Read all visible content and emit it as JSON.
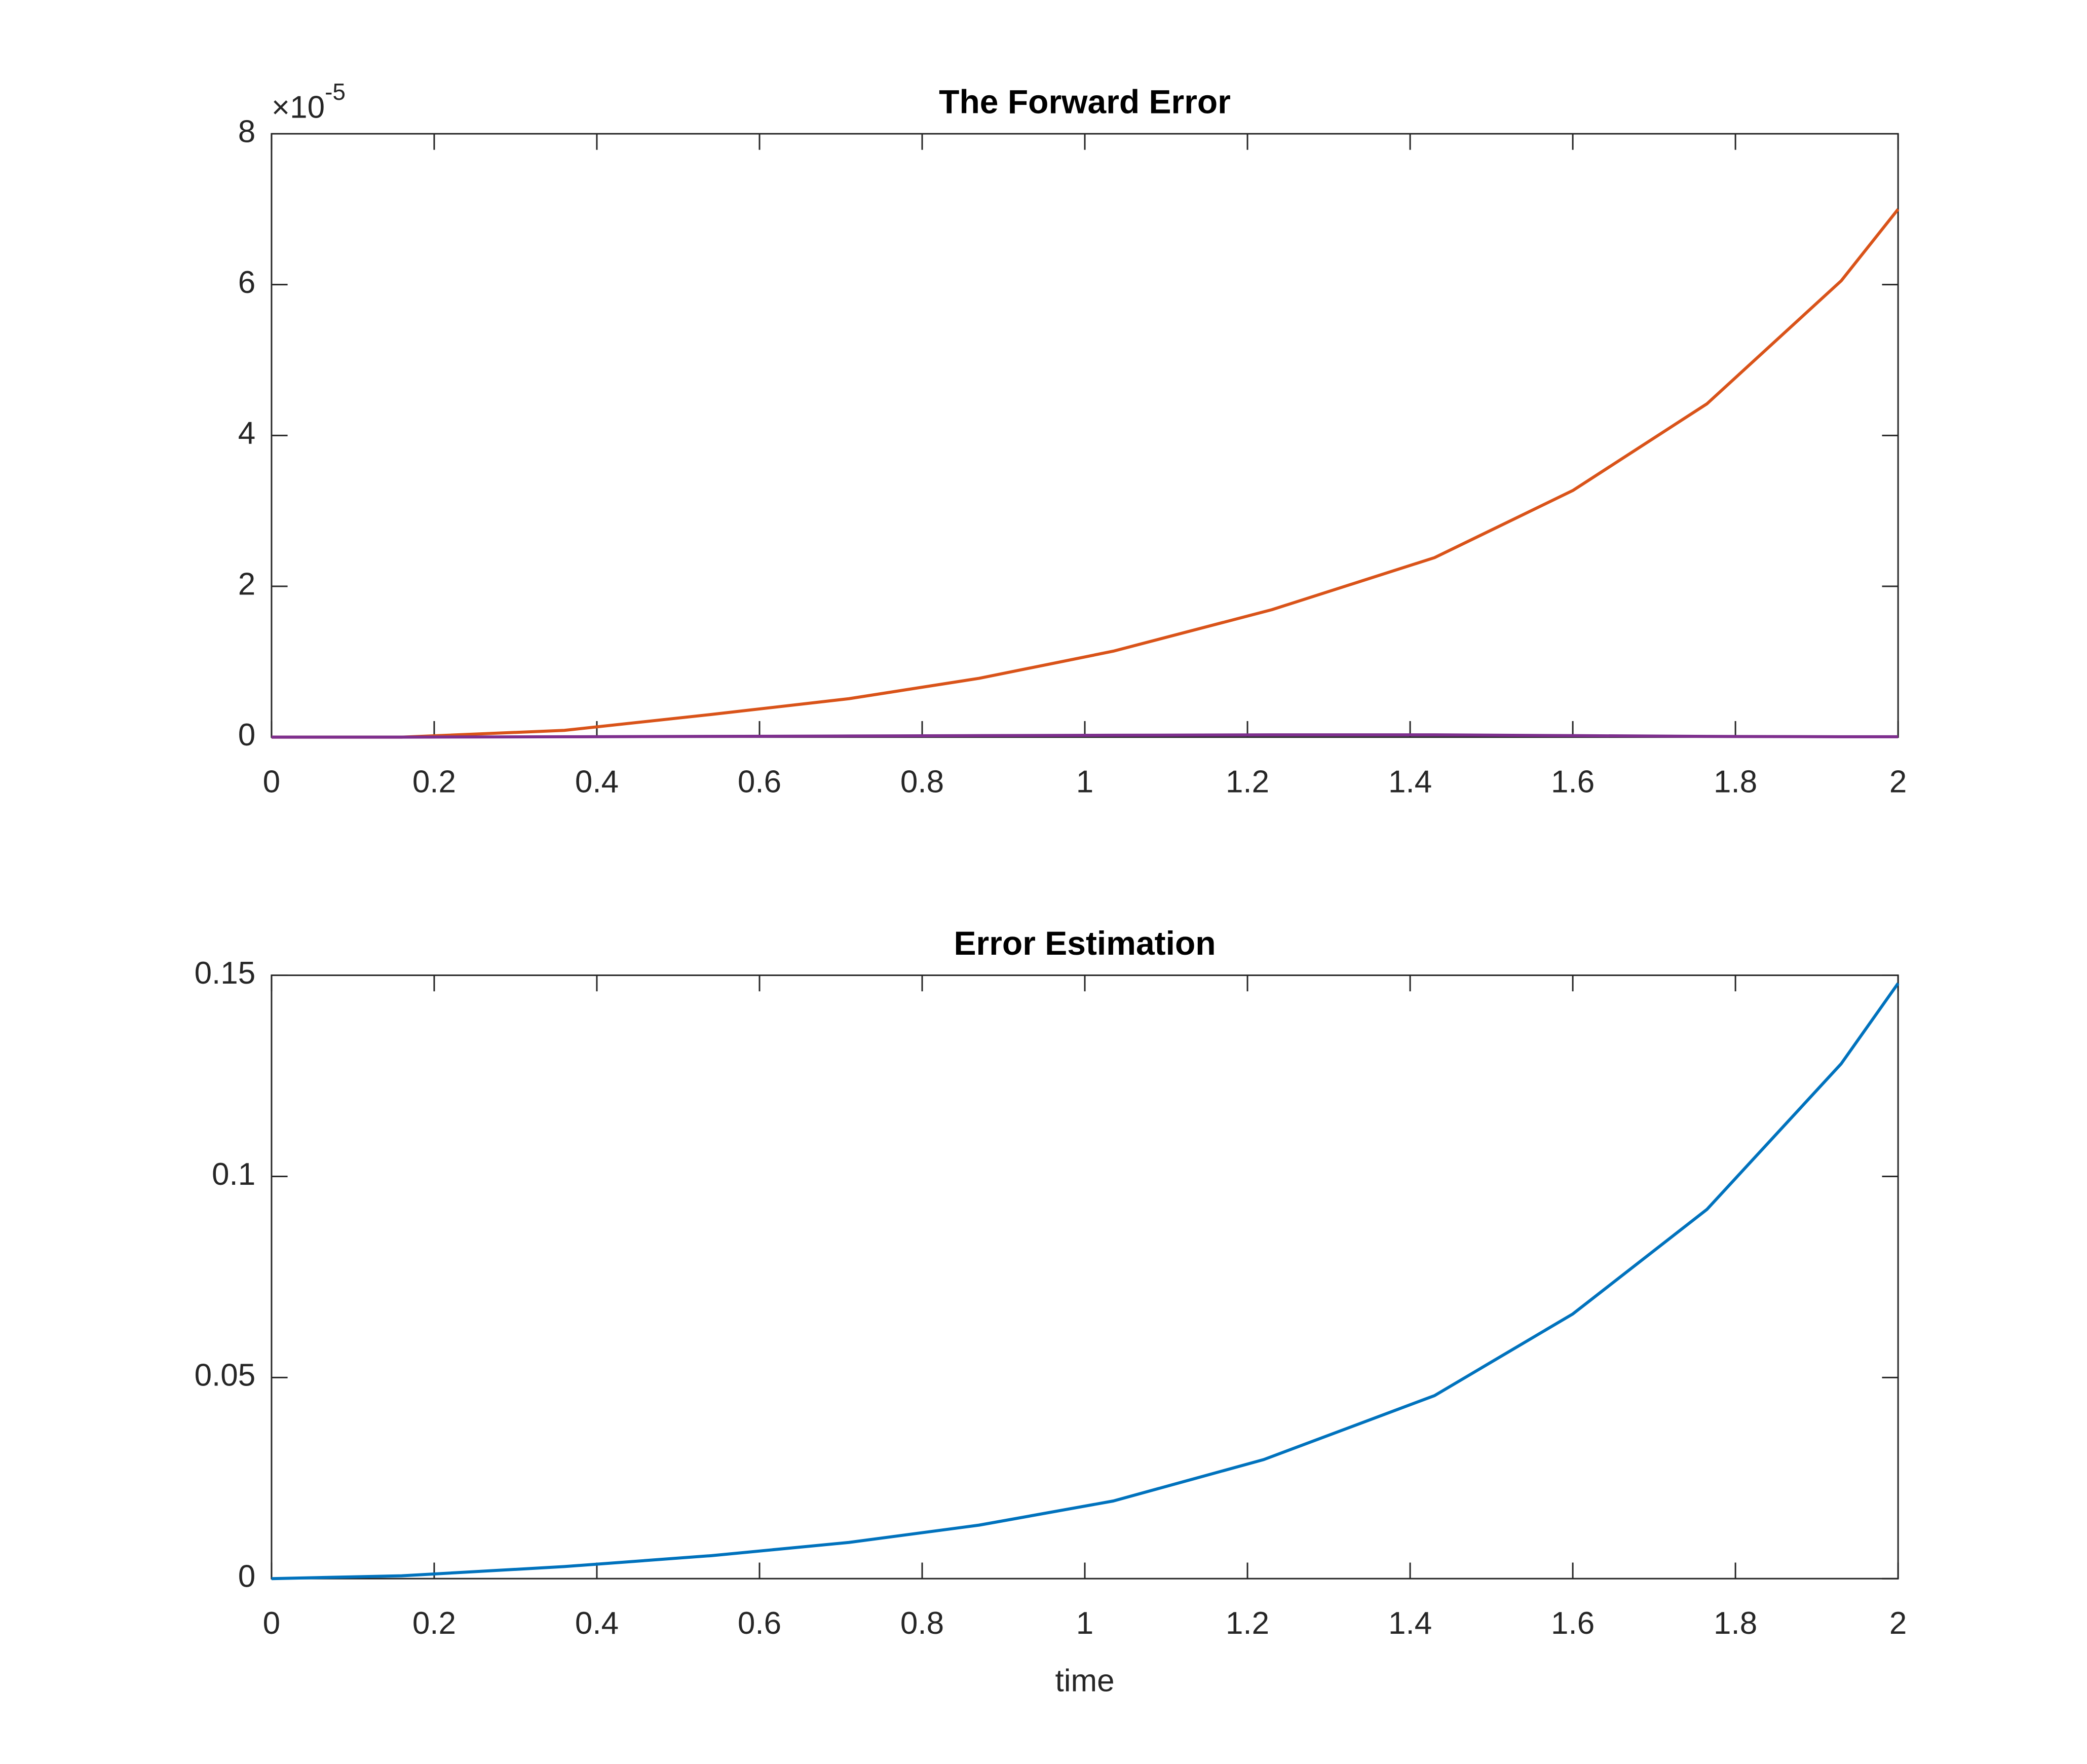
{
  "chart_data": [
    {
      "type": "line",
      "title": "The Forward Error",
      "y_exponent_base": "×10",
      "y_exponent": "-5",
      "x": [
        0,
        0.16,
        0.36,
        0.54,
        0.71,
        0.87,
        1.035,
        1.23,
        1.43,
        1.6,
        1.765,
        1.93,
        2
      ],
      "series": [
        {
          "color": "#D95319",
          "values": [
            0,
            0,
            0.09,
            0.3,
            0.51,
            0.78,
            1.14,
            1.69,
            2.38,
            3.27,
            4.42,
            6.05,
            7.0
          ]
        },
        {
          "color": "#7E2F8E",
          "values": [
            0,
            0,
            0.005,
            0.01,
            0.015,
            0.02,
            0.025,
            0.03,
            0.03,
            0.02,
            0.01,
            0.005,
            0.005
          ]
        }
      ],
      "xlim": [
        0,
        2
      ],
      "xticks": [
        0,
        0.2,
        0.4,
        0.6,
        0.8,
        1,
        1.2,
        1.4,
        1.6,
        1.8,
        2
      ],
      "ylim": [
        0,
        8
      ],
      "yticks": [
        0,
        2,
        4,
        6,
        8
      ]
    },
    {
      "type": "line",
      "title": "Error Estimation",
      "xlabel": "time",
      "x": [
        0,
        0.16,
        0.36,
        0.54,
        0.71,
        0.87,
        1.035,
        1.22,
        1.43,
        1.6,
        1.765,
        1.93,
        2
      ],
      "series": [
        {
          "color": "#0072BD",
          "values": [
            0,
            0.0007,
            0.003,
            0.0057,
            0.009,
            0.0133,
            0.0193,
            0.0296,
            0.0455,
            0.0658,
            0.0918,
            0.128,
            0.148
          ]
        }
      ],
      "xlim": [
        0,
        2
      ],
      "xticks": [
        0,
        0.2,
        0.4,
        0.6,
        0.8,
        1,
        1.2,
        1.4,
        1.6,
        1.8,
        2
      ],
      "ylim": [
        0,
        0.15
      ],
      "yticks": [
        0,
        0.05,
        0.1,
        0.15
      ]
    }
  ]
}
